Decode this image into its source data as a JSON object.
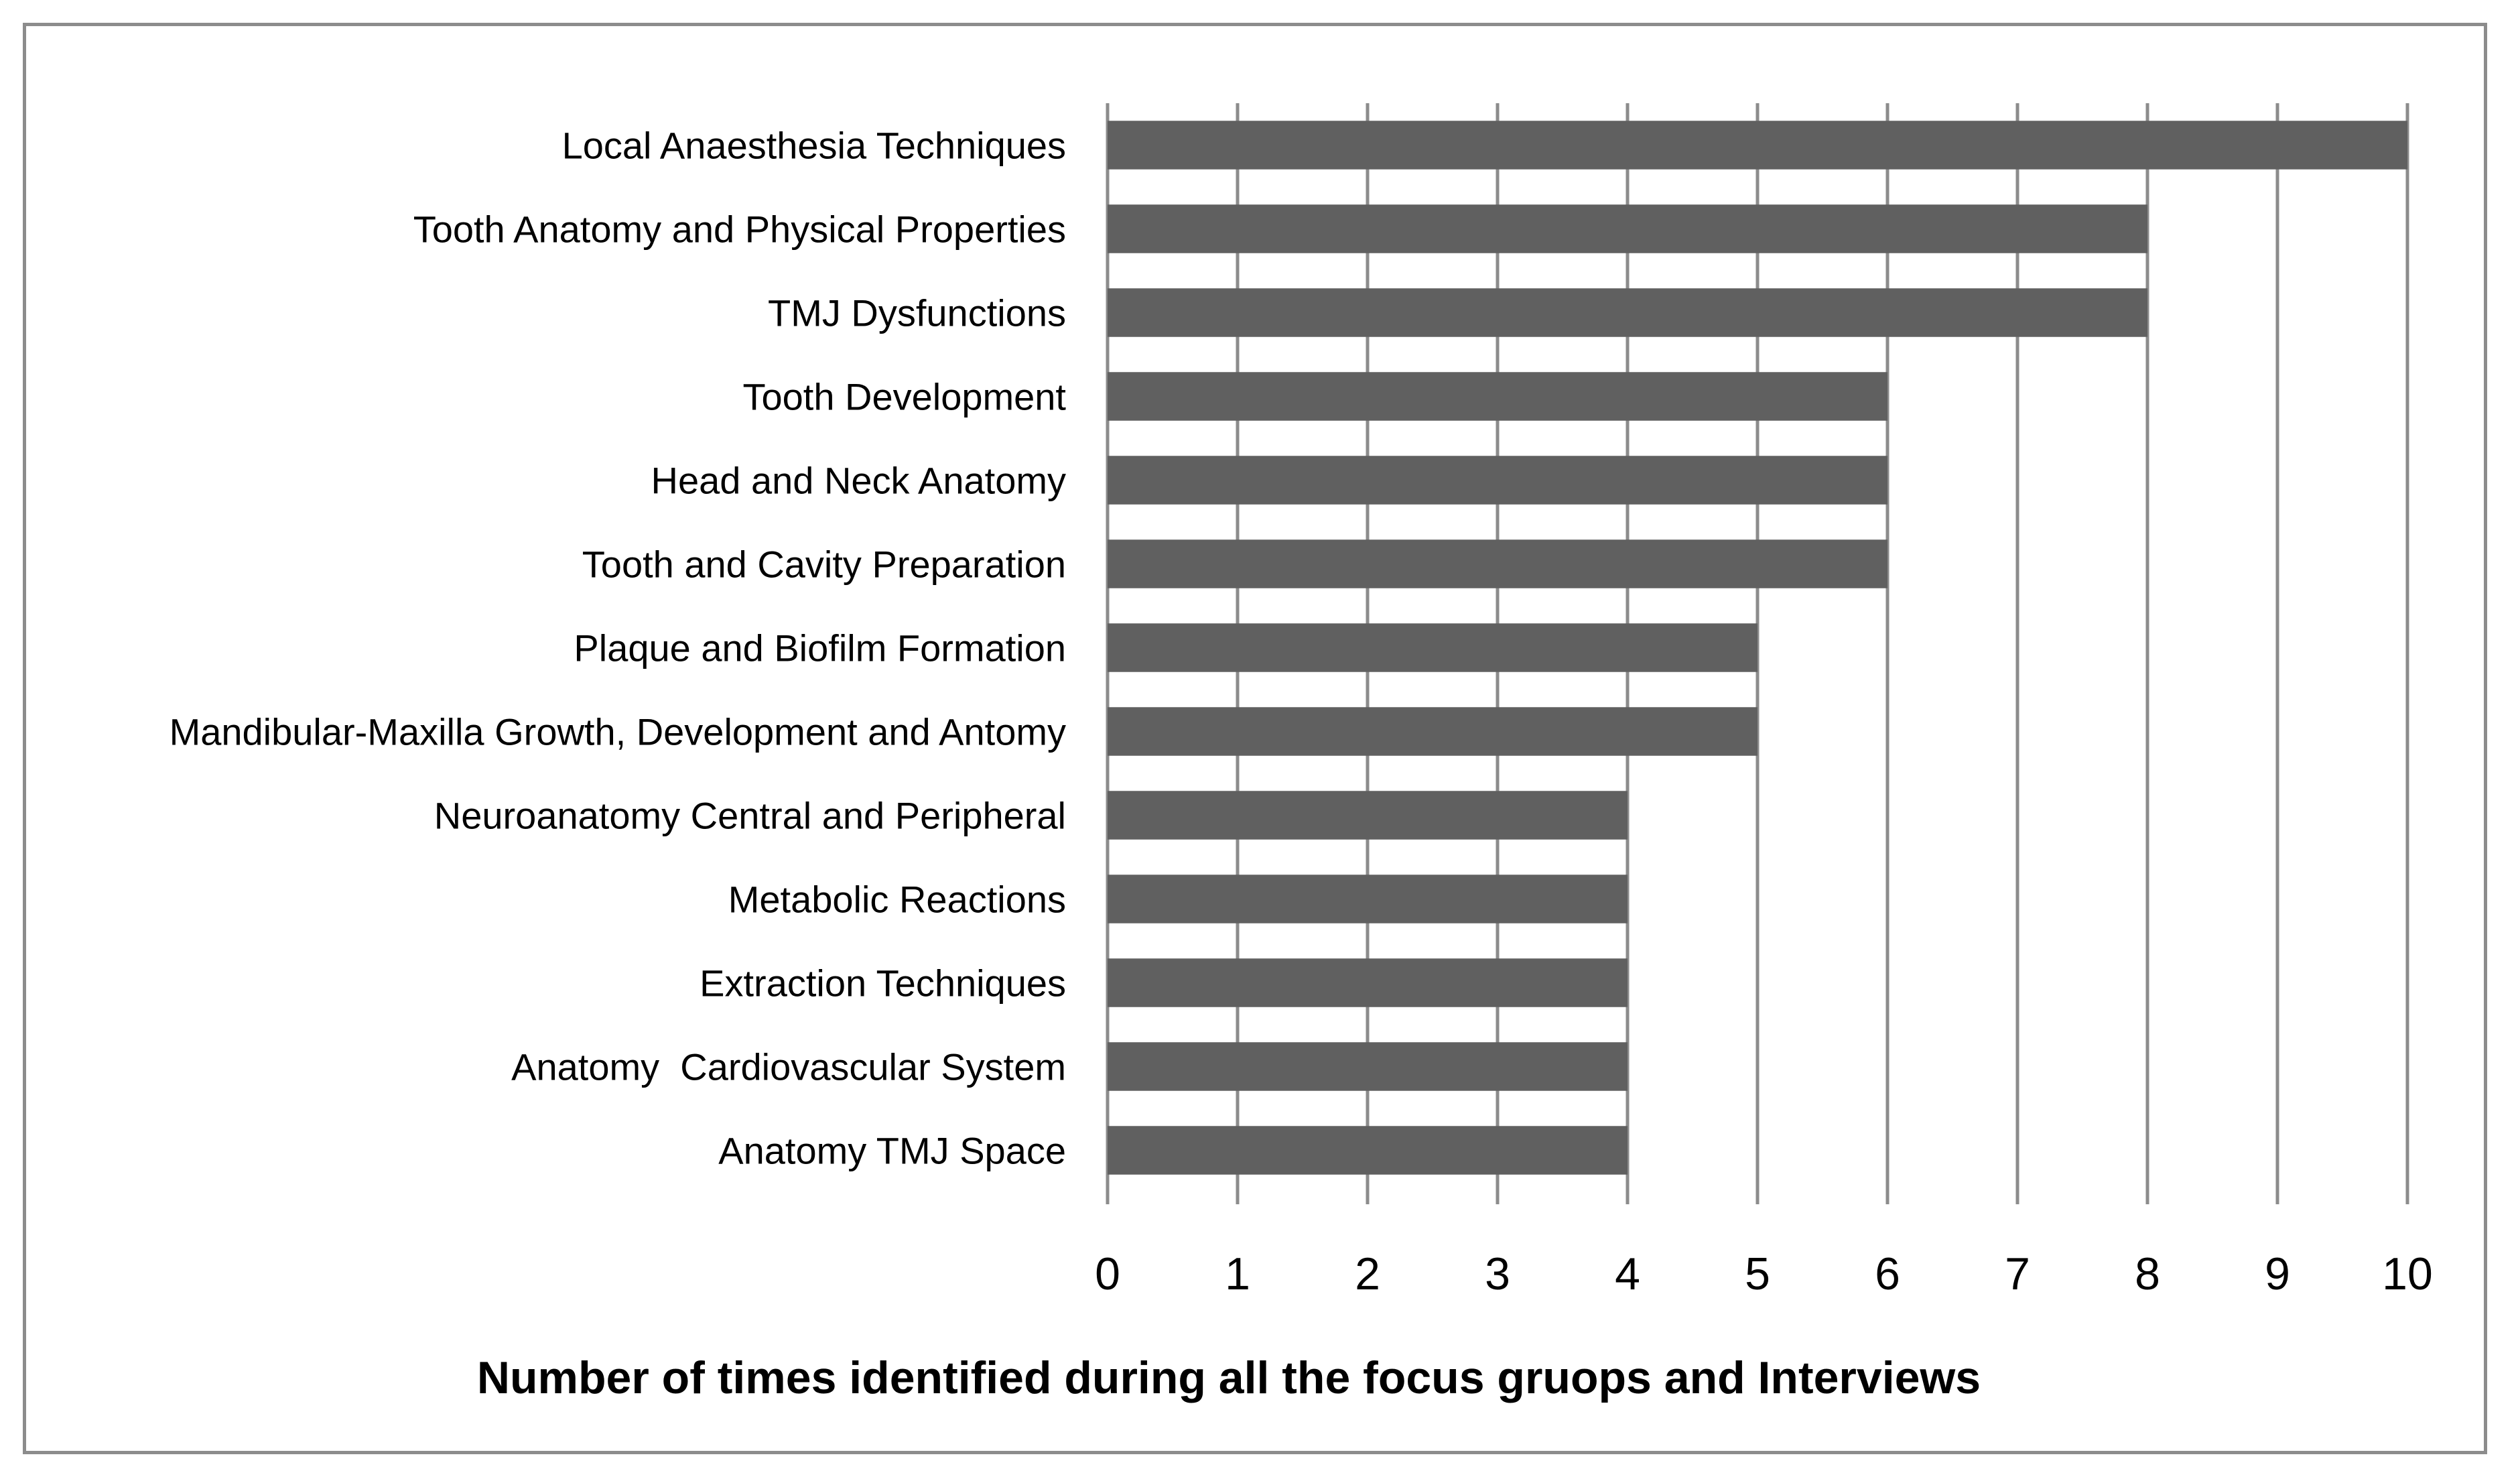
{
  "chart_data": {
    "type": "bar",
    "orientation": "horizontal",
    "categories": [
      "Local Anaesthesia Techniques",
      "Tooth Anatomy and Physical Properties",
      "TMJ Dysfunctions",
      "Tooth Development",
      "Head and Neck Anatomy",
      "Tooth and Cavity Preparation",
      "Plaque and Biofilm Formation",
      "Mandibular-Maxilla Growth, Development and Antomy",
      "Neuroanatomy Central and Peripheral",
      "Metabolic Reactions",
      "Extraction Techniques",
      "Anatomy  Cardiovascular System",
      "Anatomy TMJ Space"
    ],
    "values": [
      10,
      8,
      8,
      6,
      6,
      6,
      5,
      5,
      4,
      4,
      4,
      4,
      4
    ],
    "title": "",
    "xlabel": "Number of times identified during all the focus gruops and Interviews",
    "ylabel": "",
    "xlim": [
      0,
      10
    ],
    "xticks": [
      "0",
      "1",
      "2",
      "3",
      "4",
      "5",
      "6",
      "7",
      "8",
      "9",
      "10"
    ],
    "grid": "vertical",
    "legend": "none",
    "bar_color": "#606060",
    "grid_color": "#8c8c8c"
  }
}
